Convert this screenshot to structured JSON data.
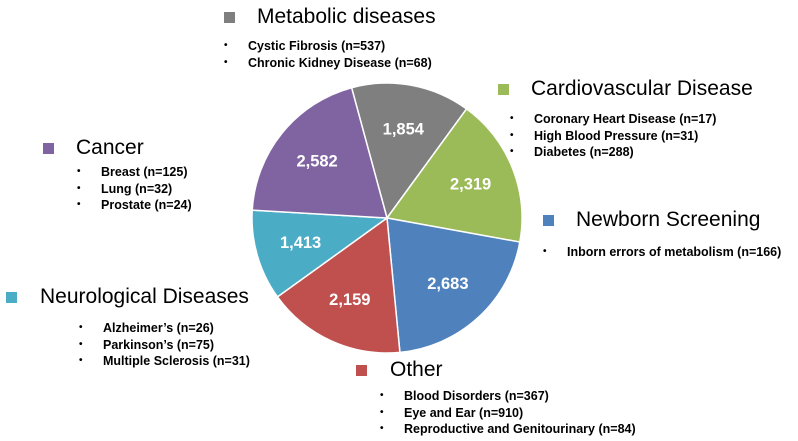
{
  "chart_data": {
    "type": "pie",
    "slices": [
      {
        "name": "Metabolic diseases",
        "value": 1854,
        "label": "1,854",
        "color": "#7f7f7f",
        "details": [
          "Cystic Fibrosis (n=537)",
          "Chronic Kidney Disease (n=68)"
        ]
      },
      {
        "name": "Cardiovascular Disease",
        "value": 2319,
        "label": "2,319",
        "color": "#9bbb59",
        "details": [
          "Coronary Heart Disease (n=17)",
          "High Blood Pressure  (n=31)",
          "Diabetes (n=288)"
        ]
      },
      {
        "name": "Newborn Screening",
        "value": 2683,
        "label": "2,683",
        "color": "#4f81bd",
        "details": [
          "Inborn errors of metabolism (n=166)"
        ]
      },
      {
        "name": "Other",
        "value": 2159,
        "label": "2,159",
        "color": "#c0504d",
        "details": [
          "Blood Disorders (n=367)",
          "Eye and Ear (n=910)",
          "Reproductive and Genitourinary (n=84)"
        ]
      },
      {
        "name": "Neurological Diseases",
        "value": 1413,
        "label": "1,413",
        "color": "#4bacc6",
        "details": [
          "Alzheimer’s  (n=26)",
          "Parkinson’s (n=75)",
          "Multiple Sclerosis (n=31)"
        ]
      },
      {
        "name": "Cancer",
        "value": 2582,
        "label": "2,582",
        "color": "#8064a2",
        "details": [
          "Breast (n=125)",
          "Lung  (n=32)",
          "Prostate (n=24)"
        ]
      }
    ],
    "slice_border_color": "#ffffff",
    "legend": "labels placed around the pie"
  }
}
